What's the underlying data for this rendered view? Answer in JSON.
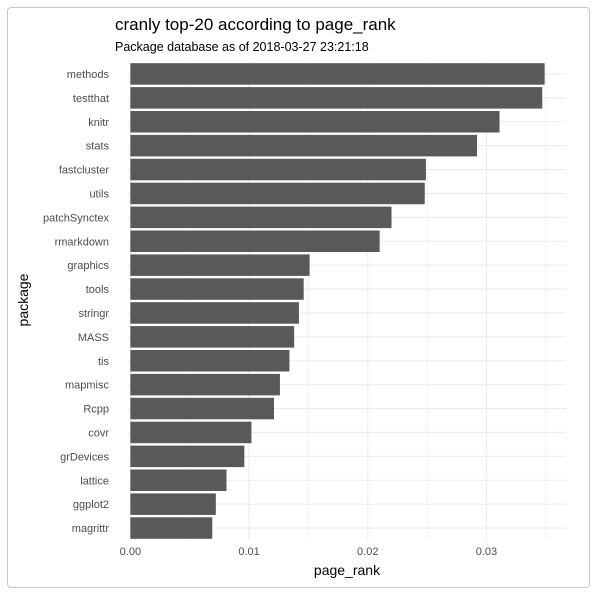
{
  "chart_data": {
    "type": "bar",
    "orientation": "horizontal",
    "title": "cranly top-20 according to page_rank",
    "subtitle": "Package database as of 2018-03-27 23:21:18",
    "xlabel": "page_rank",
    "ylabel": "package",
    "categories": [
      "methods",
      "testthat",
      "knitr",
      "stats",
      "fastcluster",
      "utils",
      "patchSynctex",
      "rmarkdown",
      "graphics",
      "tools",
      "stringr",
      "MASS",
      "tis",
      "mapmisc",
      "Rcpp",
      "covr",
      "grDevices",
      "lattice",
      "ggplot2",
      "magrittr"
    ],
    "values": [
      0.0349,
      0.0347,
      0.0311,
      0.0292,
      0.0249,
      0.0248,
      0.022,
      0.021,
      0.0151,
      0.0146,
      0.0142,
      0.0138,
      0.0134,
      0.0126,
      0.0121,
      0.0102,
      0.0096,
      0.0081,
      0.0072,
      0.0069
    ],
    "xticks": [
      0.0,
      0.01,
      0.02,
      0.03
    ],
    "xtick_labels": [
      "0.00",
      "0.01",
      "0.02",
      "0.03"
    ],
    "xlim": [
      -0.0002,
      0.0367
    ],
    "grid": true,
    "bar_color": "#595959",
    "grid_color": "#ebebeb"
  }
}
